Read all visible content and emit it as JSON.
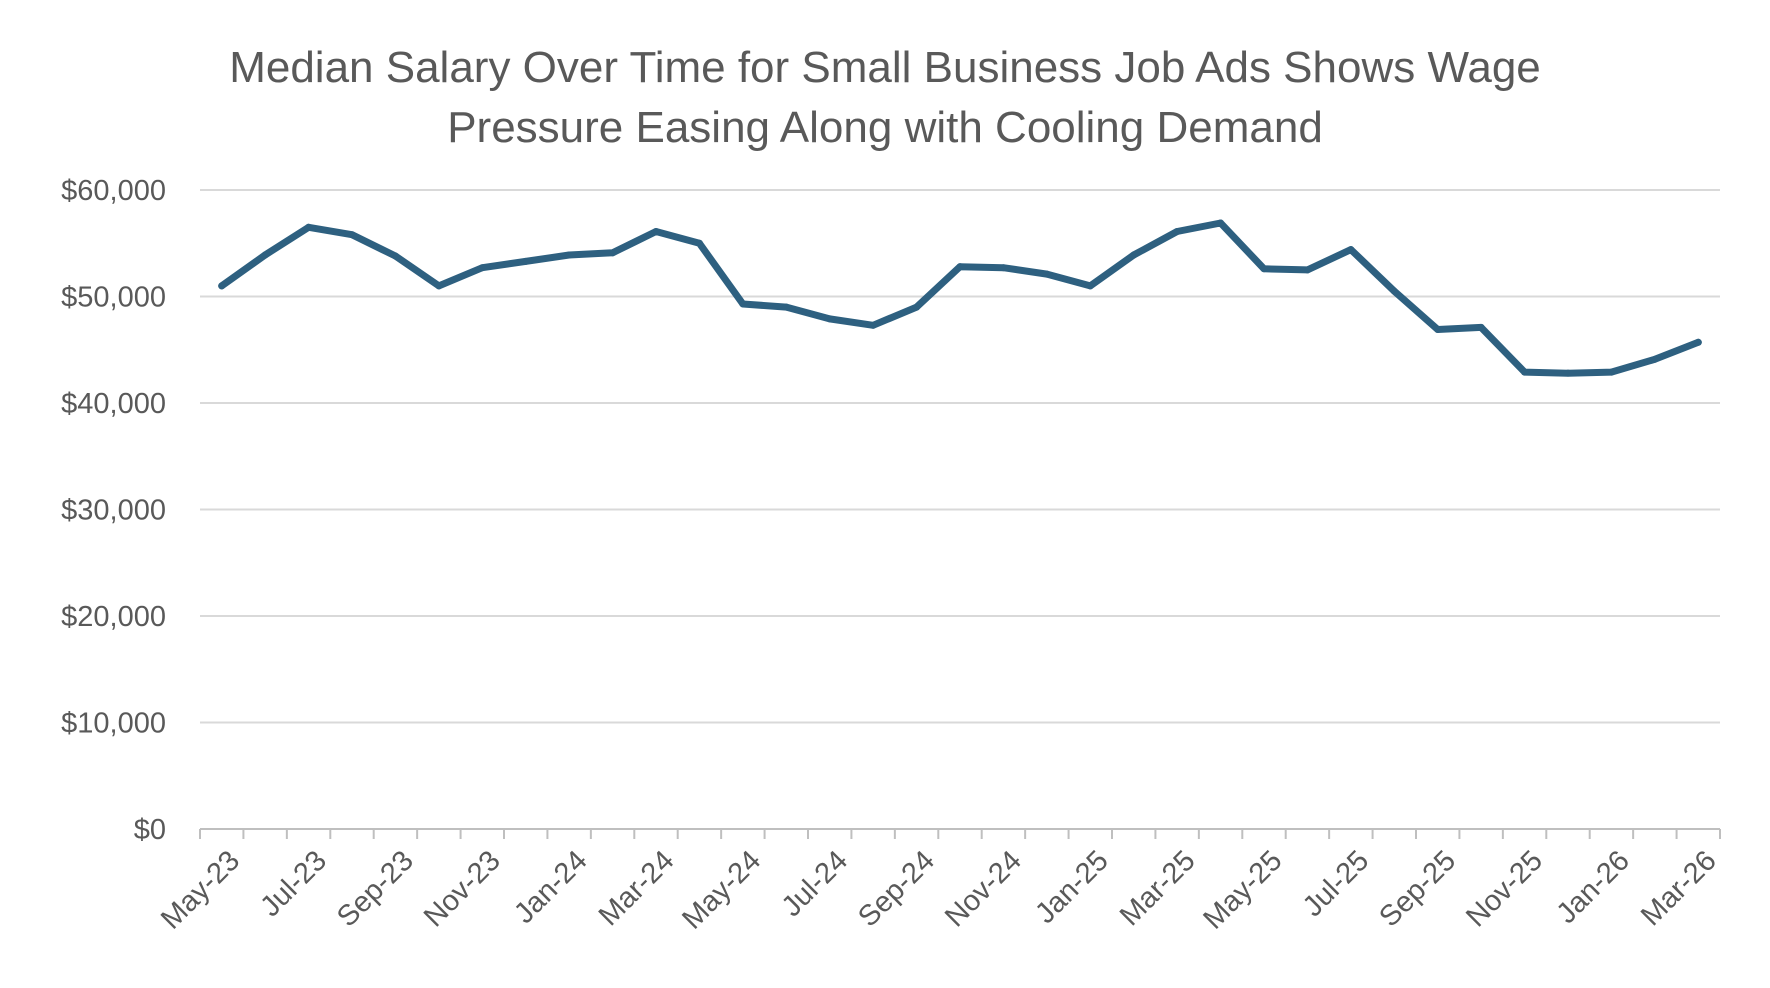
{
  "chart_data": {
    "type": "line",
    "title_line1": "Median Salary Over Time for Small Business Job Ads Shows Wage",
    "title_line2": "Pressure Easing Along with Cooling Demand",
    "xlabel": "",
    "ylabel": "",
    "ylim": [
      0,
      60000
    ],
    "y_ticks": [
      0,
      10000,
      20000,
      30000,
      40000,
      50000,
      60000
    ],
    "y_tick_labels": [
      "$0",
      "$10,000",
      "$20,000",
      "$30,000",
      "$40,000",
      "$50,000",
      "$60,000"
    ],
    "x_tick_labels": [
      "May-23",
      "Jul-23",
      "Sep-23",
      "Nov-23",
      "Jan-24",
      "Mar-24",
      "May-24",
      "Jul-24",
      "Sep-24",
      "Nov-24",
      "Jan-25",
      "Mar-25",
      "May-25",
      "Jul-25",
      "Sep-25",
      "Nov-25",
      "Jan-26",
      "Mar-26"
    ],
    "grid": true,
    "legend": "none",
    "line_color": "#2E6080",
    "series": [
      {
        "x": [
          "May-23",
          "Jun-23",
          "Jul-23",
          "Aug-23",
          "Sep-23",
          "Oct-23",
          "Nov-23",
          "Dec-23",
          "Jan-24",
          "Feb-24",
          "Mar-24",
          "Apr-24",
          "May-24",
          "Jun-24",
          "Jul-24",
          "Aug-24",
          "Sep-24",
          "Oct-24",
          "Nov-24",
          "Dec-24",
          "Jan-25",
          "Feb-25",
          "Mar-25",
          "Apr-25",
          "May-25",
          "Jun-25",
          "Jul-25",
          "Aug-25",
          "Sep-25",
          "Oct-25",
          "Nov-25",
          "Dec-25",
          "Jan-26",
          "Feb-26",
          "Mar-26"
        ],
        "values": [
          51000,
          53900,
          56500,
          55800,
          53800,
          51000,
          52700,
          53300,
          53900,
          54100,
          56100,
          55000,
          49300,
          49000,
          47900,
          47300,
          49000,
          52800,
          52700,
          52100,
          51000,
          53900,
          56100,
          56900,
          52600,
          52500,
          54400,
          50500,
          46900,
          47100,
          42900,
          42800,
          42900,
          44100,
          45700
        ]
      }
    ]
  }
}
